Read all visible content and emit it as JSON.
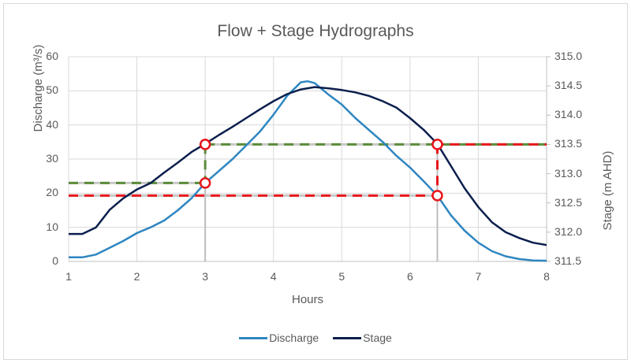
{
  "chart_data": {
    "type": "line",
    "title": "Flow + Stage Hydrographs",
    "xlabel": "Hours",
    "ylabel": "Discharge (m³/s)",
    "ylabel_right": "Stage (m AHD)",
    "xlim": [
      1,
      8
    ],
    "ylim": [
      0,
      60
    ],
    "ylim_right": [
      311.5,
      315.0
    ],
    "x_ticks": [
      "1",
      "2",
      "3",
      "4",
      "5",
      "6",
      "7",
      "8"
    ],
    "y_ticks": [
      "0",
      "10",
      "20",
      "30",
      "40",
      "50",
      "60"
    ],
    "y_ticks_right": [
      "311.5",
      "312.0",
      "312.5",
      "313.0",
      "313.5",
      "314.0",
      "314.5",
      "315.0"
    ],
    "grid": true,
    "legend_position": "bottom",
    "series": [
      {
        "name": "Discharge",
        "axis": "left",
        "color": "#2e86c1",
        "x": [
          1,
          1.2,
          1.4,
          1.6,
          1.8,
          2,
          2.2,
          2.4,
          2.6,
          2.8,
          3,
          3.2,
          3.4,
          3.6,
          3.8,
          4,
          4.2,
          4.4,
          4.5,
          4.6,
          4.8,
          5,
          5.2,
          5.4,
          5.6,
          5.8,
          6,
          6.2,
          6.4,
          6.6,
          6.8,
          7,
          7.2,
          7.4,
          7.6,
          7.8,
          8
        ],
        "values": [
          1.2,
          1.2,
          2,
          4,
          6,
          8.3,
          10,
          12,
          15,
          18.5,
          23,
          26.5,
          30,
          34,
          38,
          43,
          48.5,
          52.5,
          52.8,
          52.3,
          49,
          46,
          42,
          38.5,
          35,
          31,
          27.5,
          23.5,
          19.3,
          13.5,
          9,
          5.5,
          3,
          1.5,
          0.7,
          0.3,
          0.2
        ]
      },
      {
        "name": "Stage",
        "axis": "right",
        "color": "#0b1f4d",
        "x": [
          1,
          1.2,
          1.4,
          1.6,
          1.8,
          2,
          2.2,
          2.4,
          2.6,
          2.8,
          3,
          3.2,
          3.4,
          3.6,
          3.8,
          4,
          4.2,
          4.4,
          4.6,
          4.8,
          5,
          5.2,
          5.4,
          5.6,
          5.8,
          6,
          6.2,
          6.4,
          6.6,
          6.8,
          7,
          7.2,
          7.4,
          7.6,
          7.8,
          8
        ],
        "values": [
          311.97,
          311.97,
          312.08,
          312.38,
          312.58,
          312.73,
          312.84,
          313.02,
          313.19,
          313.37,
          313.51,
          313.66,
          313.8,
          313.95,
          314.1,
          314.24,
          314.36,
          314.44,
          314.48,
          314.46,
          314.43,
          314.39,
          314.33,
          314.24,
          314.13,
          313.95,
          313.75,
          313.51,
          313.13,
          312.75,
          312.43,
          312.17,
          312.0,
          311.9,
          311.82,
          311.78
        ]
      }
    ],
    "annotations": {
      "markers": [
        {
          "x": 3,
          "value": 313.5,
          "axis": "right",
          "label": "Stage at 3 h"
        },
        {
          "x": 3,
          "value": 23,
          "axis": "left",
          "label": "Discharge at 3 h"
        },
        {
          "x": 6.4,
          "value": 313.5,
          "axis": "right",
          "label": "Stage at 6.4 h"
        },
        {
          "x": 6.4,
          "value": 19.3,
          "axis": "left",
          "label": "Discharge at 6.4 h"
        }
      ],
      "green_dashed": {
        "color": "#5b8c3a",
        "stage_level": 313.5,
        "discharge_level": 23,
        "hour": 3
      },
      "red_dashed": {
        "color": "#e8161b",
        "stage_level": 313.5,
        "discharge_level": 19.3,
        "hour": 6.4
      }
    }
  },
  "legend": {
    "items": [
      {
        "label": "Discharge",
        "color": "#2e86c1"
      },
      {
        "label": "Stage",
        "color": "#0b1f4d"
      }
    ]
  }
}
